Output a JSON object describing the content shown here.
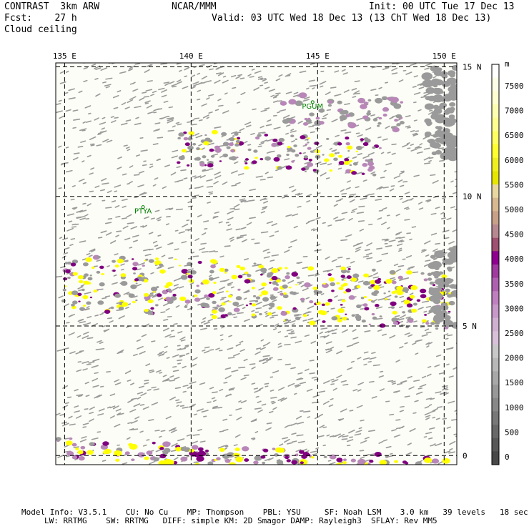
{
  "header": {
    "model": "CONTRAST  3km ARW",
    "forecast_label": "Fcst:    27 h",
    "field": "Cloud ceiling",
    "center": "NCAR/MMM",
    "init": "Init: 00 UTC Tue 17 Dec 13",
    "valid": "Valid: 03 UTC Wed 18 Dec 13 (13 ChT Wed 18 Dec 13)"
  },
  "map": {
    "lon_labels": [
      "135 E",
      "140 E",
      "145 E",
      "150 E"
    ],
    "lat_labels": [
      "15 N",
      "10 N",
      "5 N",
      "0"
    ],
    "stations": [
      {
        "label": "PGUM"
      },
      {
        "label": "PTYA"
      }
    ]
  },
  "colorbar": {
    "unit": "m",
    "ticks": [
      "7500",
      "7000",
      "6500",
      "6000",
      "5500",
      "5000",
      "4500",
      "4000",
      "3500",
      "3000",
      "2500",
      "2000",
      "1500",
      "1000",
      "500",
      "0"
    ],
    "colors": [
      "#ffffff",
      "#fefee8",
      "#fefed0",
      "#fefeb0",
      "#fefe90",
      "#fefe60",
      "#fefe30",
      "#f0f020",
      "#e6e600",
      "#e8d8a0",
      "#d8b890",
      "#c8a088",
      "#b88890",
      "#a05070",
      "#900090",
      "#a03aa0",
      "#b060b0",
      "#c080c0",
      "#c898c8",
      "#d0b0d0",
      "#d8c0d8",
      "#c8c8c8",
      "#b8b8b8",
      "#a8a8a8",
      "#989898",
      "#888888",
      "#787878",
      "#686868",
      "#585858",
      "#484848"
    ]
  },
  "colors": {
    "land_background": "#fdfdf7",
    "cloud_gray": "#9a9a9a",
    "cloud_purple": "#b887b8",
    "cloud_dark_purple": "#800080",
    "cloud_yellow": "#ffff00",
    "station_green": "#008000"
  },
  "footer": {
    "line1": "Model Info: V3.5.1    CU: No Cu    MP: Thompson    PBL: YSU     SF: Noah LSM    3.0 km   39 levels   18 sec",
    "line2": "LW: RRTMG    SW: RRTMG   DIFF: simple KM: 2D Smagor DAMP: Rayleigh3  SFLAY: Rev MM5"
  }
}
